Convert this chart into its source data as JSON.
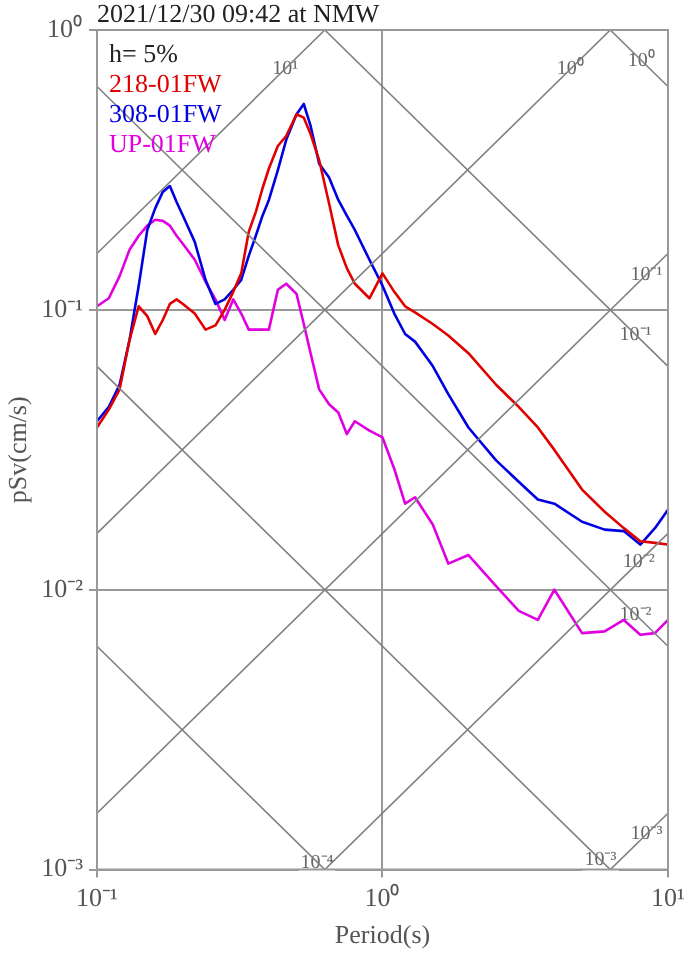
{
  "chart_data": {
    "type": "line",
    "title": "2021/12/30 09:42 at NMW",
    "legend_title": "h= 5%",
    "xlabel": "Period(s)",
    "ylabel": "pSv(cm/s)",
    "log": "xy",
    "grid": true,
    "legend": "top left",
    "marker": "none",
    "xlim": [
      0.1,
      10
    ],
    "ylim": [
      0.001,
      1
    ],
    "xticks": [
      {
        "value": 0.1,
        "label": "10⁻¹"
      },
      {
        "value": 1,
        "label": "10⁰"
      },
      {
        "value": 10,
        "label": "10¹"
      }
    ],
    "yticks": [
      {
        "value": 0.001,
        "label": "10⁻³"
      },
      {
        "value": 0.01,
        "label": "10⁻²"
      },
      {
        "value": 0.1,
        "label": "10⁻¹"
      },
      {
        "value": 1,
        "label": "10⁰"
      }
    ],
    "x": [
      0.1,
      0.11,
      0.12,
      0.13,
      0.14,
      0.15,
      0.16,
      0.17,
      0.18,
      0.19,
      0.2,
      0.22,
      0.24,
      0.26,
      0.28,
      0.3,
      0.32,
      0.34,
      0.36,
      0.38,
      0.4,
      0.43,
      0.46,
      0.5,
      0.53,
      0.56,
      0.6,
      0.65,
      0.7,
      0.75,
      0.8,
      0.9,
      1.0,
      1.1,
      1.2,
      1.3,
      1.5,
      1.7,
      2.0,
      2.5,
      3.0,
      3.5,
      4.0,
      5.0,
      6.0,
      7.0,
      8.0,
      9.0,
      10
    ],
    "series": [
      {
        "color": "#808080",
        "x": [
          0.1,
          0.628
        ],
        "values": [
          0.159,
          1
        ]
      },
      {
        "color": "#808080",
        "x": [
          0.1,
          6.28
        ],
        "values": [
          0.0159,
          1
        ]
      },
      {
        "color": "#808080",
        "x": [
          0.1,
          10
        ],
        "values": [
          0.00159,
          0.159
        ]
      },
      {
        "color": "#808080",
        "x": [
          0.628,
          10
        ],
        "values": [
          0.001,
          0.0159
        ]
      },
      {
        "color": "#808080",
        "x": [
          6.28,
          10
        ],
        "values": [
          0.001,
          0.00159
        ]
      },
      {
        "color": "#808080",
        "x": [
          6.28,
          10
        ],
        "values": [
          1,
          0.628
        ]
      },
      {
        "color": "#808080",
        "x": [
          0.628,
          10
        ],
        "values": [
          1,
          0.0628
        ]
      },
      {
        "color": "#808080",
        "x": [
          0.1,
          10
        ],
        "values": [
          0.628,
          0.00628
        ]
      },
      {
        "color": "#808080",
        "x": [
          0.1,
          6.28
        ],
        "values": [
          0.0628,
          0.001
        ]
      },
      {
        "color": "#808080",
        "x": [
          0.1,
          0.628
        ],
        "values": [
          0.00628,
          0.001
        ]
      },
      {
        "name": "218-01FW",
        "color": "#e00000",
        "values": [
          0.038,
          0.044,
          0.052,
          0.078,
          0.103,
          0.095,
          0.082,
          0.092,
          0.105,
          0.109,
          0.105,
          0.097,
          0.085,
          0.088,
          0.1,
          0.116,
          0.135,
          0.19,
          0.224,
          0.272,
          0.32,
          0.385,
          0.418,
          0.5,
          0.486,
          0.425,
          0.343,
          0.24,
          0.17,
          0.141,
          0.124,
          0.11,
          0.135,
          0.116,
          0.103,
          0.098,
          0.089,
          0.081,
          0.07,
          0.054,
          0.045,
          0.038,
          0.0316,
          0.0228,
          0.019,
          0.0166,
          0.0149,
          0.0147,
          0.0145
        ]
      },
      {
        "name": "308-01FW",
        "color": "#0000e0",
        "values": [
          0.04,
          0.045,
          0.054,
          0.078,
          0.122,
          0.193,
          0.231,
          0.264,
          0.277,
          0.243,
          0.217,
          0.175,
          0.128,
          0.105,
          0.109,
          0.118,
          0.128,
          0.156,
          0.184,
          0.217,
          0.247,
          0.316,
          0.405,
          0.5,
          0.544,
          0.454,
          0.333,
          0.297,
          0.247,
          0.217,
          0.193,
          0.151,
          0.122,
          0.097,
          0.082,
          0.077,
          0.063,
          0.05,
          0.038,
          0.029,
          0.0243,
          0.021,
          0.0203,
          0.0175,
          0.0164,
          0.0162,
          0.0145,
          0.0166,
          0.0193
        ]
      },
      {
        "name": "UP-01FW",
        "color": "#e000e0",
        "values": [
          0.103,
          0.11,
          0.132,
          0.164,
          0.184,
          0.2,
          0.21,
          0.208,
          0.2,
          0.184,
          0.172,
          0.151,
          0.126,
          0.109,
          0.092,
          0.109,
          0.097,
          0.085,
          0.085,
          0.085,
          0.085,
          0.118,
          0.124,
          0.114,
          0.089,
          0.07,
          0.052,
          0.046,
          0.043,
          0.036,
          0.04,
          0.037,
          0.035,
          0.027,
          0.0203,
          0.0214,
          0.0171,
          0.0124,
          0.0133,
          0.0103,
          0.0084,
          0.0078,
          0.01,
          0.007,
          0.0071,
          0.0078,
          0.0069,
          0.007,
          0.0078
        ]
      }
    ],
    "annotations": [
      {
        "text": "10¹",
        "x": 0.456,
        "y": 0.726
      },
      {
        "text": "10⁰",
        "x": 4.56,
        "y": 0.726
      },
      {
        "text": "10⁰",
        "x": 8.1,
        "y": 0.776
      },
      {
        "text": "10⁻¹",
        "x": 8.4,
        "y": 0.134
      },
      {
        "text": "10⁻¹",
        "x": 7.7,
        "y": 0.0816
      },
      {
        "text": "10⁻²",
        "x": 7.9,
        "y": 0.0126
      },
      {
        "text": "10⁻²",
        "x": 7.7,
        "y": 0.00816
      },
      {
        "text": "10⁻⁴",
        "x": 0.59,
        "y": 0.00106
      },
      {
        "text": "10⁻³",
        "x": 5.8,
        "y": 0.00108
      },
      {
        "text": "10⁻³",
        "x": 8.4,
        "y": 0.00134
      }
    ]
  }
}
